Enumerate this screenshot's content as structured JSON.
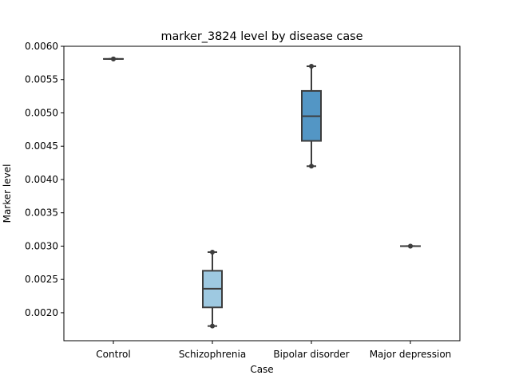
{
  "chart_data": {
    "type": "box",
    "title": "marker_3824 level by disease case",
    "xlabel": "Case",
    "ylabel": "Marker level",
    "categories": [
      "Control",
      "Schizophrenia",
      "Bipolar disorder",
      "Major depression"
    ],
    "ylim": [
      0.00158,
      0.006
    ],
    "yticks": [
      0.002,
      0.0025,
      0.003,
      0.0035,
      0.004,
      0.0045,
      0.005,
      0.0055,
      0.006
    ],
    "ytick_labels": [
      "0.0020",
      "0.0025",
      "0.0030",
      "0.0035",
      "0.0040",
      "0.0045",
      "0.0050",
      "0.0055",
      "0.0060"
    ],
    "grid": false,
    "boxes": [
      {
        "category": "Control",
        "min": 0.00581,
        "q1": 0.00581,
        "median": 0.00581,
        "q3": 0.00581,
        "max": 0.00581,
        "color": "#f7fbff"
      },
      {
        "category": "Schizophrenia",
        "min": 0.0018,
        "q1": 0.00208,
        "median": 0.00236,
        "q3": 0.00263,
        "max": 0.00291,
        "color": "#9ec9e1"
      },
      {
        "category": "Bipolar disorder",
        "min": 0.0042,
        "q1": 0.00458,
        "median": 0.00495,
        "q3": 0.00533,
        "max": 0.0057,
        "color": "#5396c5"
      },
      {
        "category": "Major depression",
        "min": 0.003,
        "q1": 0.003,
        "median": 0.003,
        "q3": 0.003,
        "max": 0.003,
        "color": "#08306b"
      }
    ],
    "line_color": "#3d3d3d"
  }
}
